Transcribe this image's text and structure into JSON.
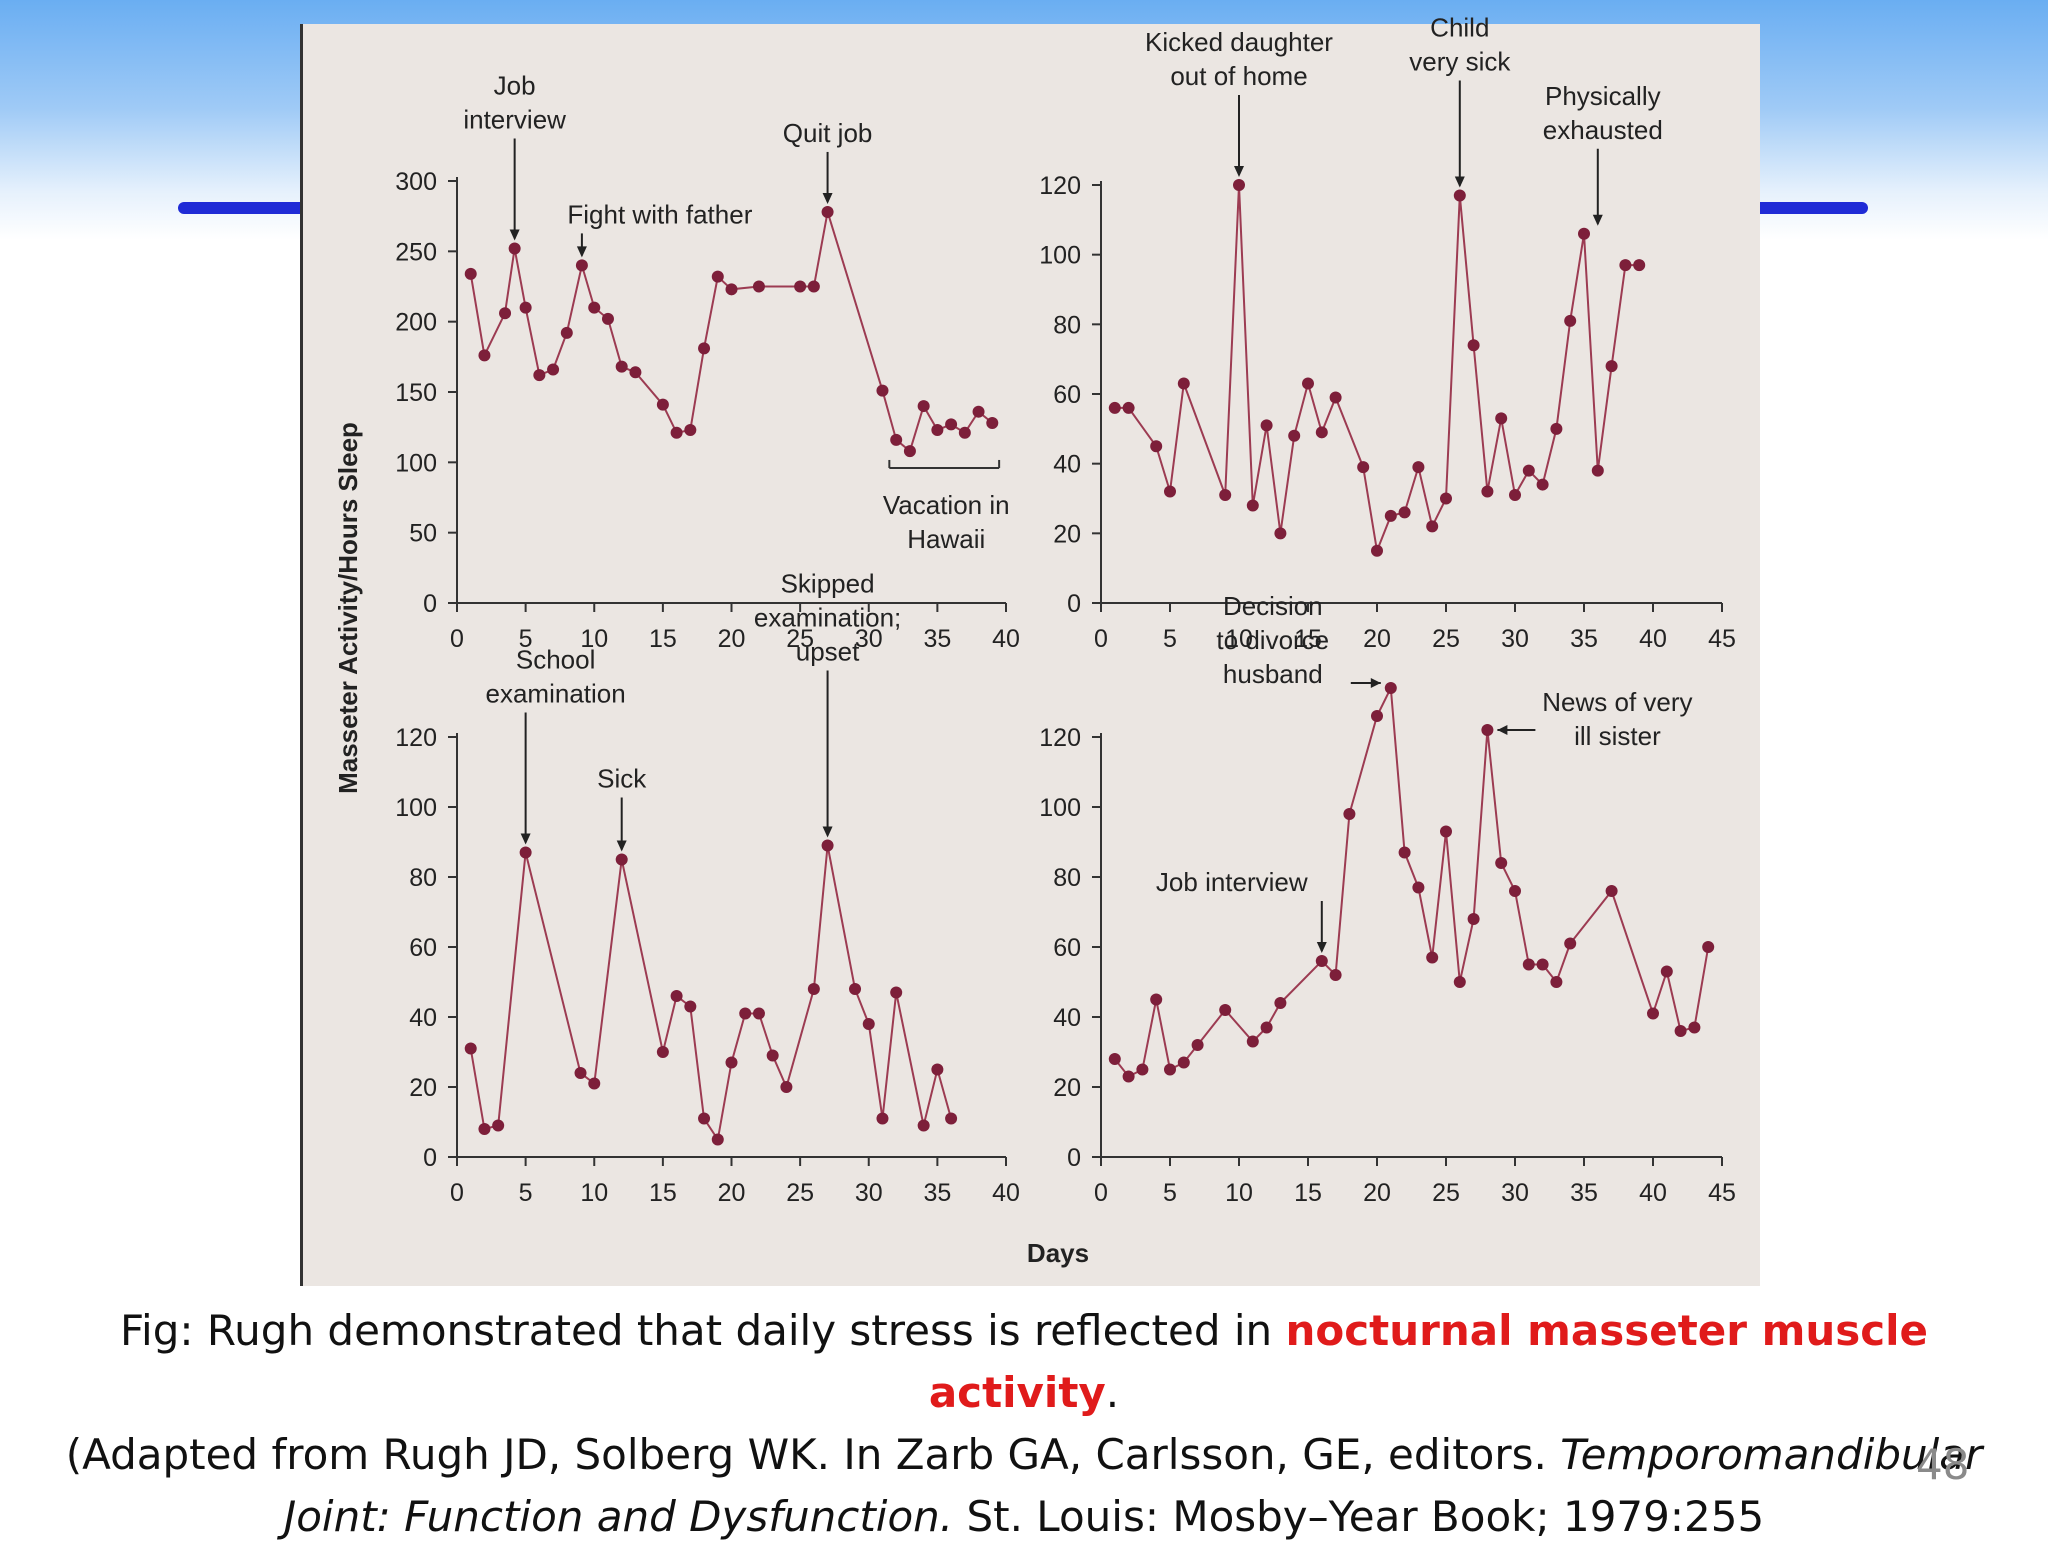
{
  "slide": {
    "caption": {
      "part1": "Fig: Rugh demonstrated that daily stress is reflected in ",
      "highlight": "nocturnal masseter muscle activity",
      "part2": ".",
      "line2": "(Adapted from Rugh JD, Solberg WK. In Zarb GA, Carlsson, GE, editors. ",
      "line2_italic": "Temporomandibular",
      "line3_italic": "Joint: Function and Dysfunction.",
      "line3": " St. Louis: Mosby–Year Book; 1979:255"
    },
    "page_number": "48",
    "colors": {
      "accent_bar": "#1f2bd6",
      "highlight_text": "#e01b1b",
      "series_line": "#9c3b52",
      "series_marker": "#7d1f3a",
      "figure_background": "#ebe6e2"
    }
  },
  "chart_data": [
    {
      "type": "line",
      "panel": "top-left",
      "ylabel": "Masseter Activity/Hours Sleep",
      "xlabel": "",
      "xlim": [
        0,
        40
      ],
      "ylim": [
        0,
        300
      ],
      "xticks": [
        "0",
        "5",
        "10",
        "15",
        "20",
        "25",
        "30",
        "35",
        "40"
      ],
      "yticks": [
        "0",
        "50",
        "100",
        "150",
        "200",
        "250",
        "300"
      ],
      "series": [
        {
          "x": [
            1,
            2,
            3.5,
            4.2,
            5,
            6,
            7,
            8,
            9.1,
            10,
            11,
            12,
            13,
            15,
            16,
            17,
            18,
            19,
            20,
            22,
            25,
            26,
            27,
            31,
            32,
            33,
            34,
            35,
            36,
            37,
            38,
            39
          ],
          "y": [
            234,
            176,
            206,
            252,
            210,
            162,
            166,
            192,
            240,
            210,
            202,
            168,
            164,
            141,
            121,
            123,
            181,
            232,
            223,
            225,
            225,
            225,
            278,
            151,
            116,
            108,
            140,
            123,
            127,
            121,
            136,
            128
          ]
        }
      ],
      "annotations": [
        {
          "text": [
            "Job",
            "interview"
          ],
          "x": 4.2,
          "y": 252
        },
        {
          "text": [
            "Fight with father"
          ],
          "x": 9.1,
          "y": 240
        },
        {
          "text": [
            "Quit job"
          ],
          "x": 27,
          "y": 278
        },
        {
          "text": [
            "Vacation in",
            "Hawaii"
          ],
          "range": [
            31.5,
            39.5
          ],
          "y": 96
        }
      ]
    },
    {
      "type": "line",
      "panel": "top-right",
      "xlabel": "",
      "xlim": [
        0,
        45
      ],
      "ylim": [
        0,
        120
      ],
      "xticks": [
        "0",
        "5",
        "10",
        "15",
        "20",
        "25",
        "30",
        "35",
        "40",
        "45"
      ],
      "yticks": [
        "0",
        "20",
        "40",
        "60",
        "80",
        "100",
        "120"
      ],
      "series": [
        {
          "x": [
            1,
            2,
            4,
            5,
            6,
            9,
            10,
            11,
            12,
            13,
            14,
            15,
            16,
            17,
            19,
            20,
            21,
            22,
            23,
            24,
            25,
            26,
            27,
            28,
            29,
            30,
            31,
            32,
            33,
            34,
            35,
            36,
            37,
            38,
            39
          ],
          "y": [
            56,
            56,
            45,
            32,
            63,
            31,
            120,
            28,
            51,
            20,
            48,
            63,
            49,
            59,
            39,
            15,
            25,
            26,
            39,
            22,
            30,
            117,
            74,
            32,
            53,
            31,
            38,
            34,
            50,
            81,
            106,
            38,
            68,
            97,
            97
          ]
        }
      ],
      "annotations": [
        {
          "text": [
            "Kicked daughter",
            "out of home"
          ],
          "x": 10,
          "y": 120
        },
        {
          "text": [
            "Child",
            "very sick"
          ],
          "x": 26,
          "y": 117
        },
        {
          "text": [
            "Physically",
            "exhausted"
          ],
          "x": 36,
          "y": 106
        }
      ]
    },
    {
      "type": "line",
      "panel": "bottom-left",
      "xlabel": "",
      "xlim": [
        0,
        40
      ],
      "ylim": [
        0,
        120
      ],
      "xticks": [
        "0",
        "5",
        "10",
        "15",
        "20",
        "25",
        "30",
        "35",
        "40"
      ],
      "yticks": [
        "0",
        "20",
        "40",
        "60",
        "80",
        "100",
        "120"
      ],
      "series": [
        {
          "x": [
            1,
            2,
            3,
            5,
            9,
            10,
            12,
            15,
            16,
            17,
            18,
            19,
            20,
            21,
            22,
            23,
            24,
            26,
            27,
            29,
            30,
            31,
            32,
            34,
            35,
            36
          ],
          "y": [
            31,
            8,
            9,
            87,
            24,
            21,
            85,
            30,
            46,
            43,
            11,
            5,
            27,
            41,
            41,
            29,
            20,
            48,
            89,
            48,
            38,
            11,
            47,
            9,
            25,
            11
          ]
        }
      ],
      "annotations": [
        {
          "text": [
            "School",
            "examination"
          ],
          "x": 5,
          "y": 87
        },
        {
          "text": [
            "Sick"
          ],
          "x": 12,
          "y": 85
        },
        {
          "text": [
            "Skipped",
            "examination;",
            "upset"
          ],
          "x": 27,
          "y": 89
        }
      ]
    },
    {
      "type": "line",
      "panel": "bottom-right",
      "xlabel": "Days",
      "xlim": [
        0,
        45
      ],
      "ylim": [
        0,
        120
      ],
      "xticks": [
        "0",
        "5",
        "10",
        "15",
        "20",
        "25",
        "30",
        "35",
        "40",
        "45"
      ],
      "yticks": [
        "0",
        "20",
        "40",
        "60",
        "80",
        "100",
        "120"
      ],
      "series": [
        {
          "x": [
            1,
            2,
            3,
            4,
            5,
            6,
            7,
            9,
            11,
            12,
            13,
            16,
            17,
            18,
            20,
            21,
            22,
            23,
            24,
            25,
            26,
            27,
            28,
            29,
            30,
            31,
            32,
            33,
            34,
            37,
            40,
            41,
            42,
            43,
            44
          ],
          "y": [
            28,
            23,
            25,
            45,
            25,
            27,
            32,
            42,
            33,
            37,
            44,
            56,
            52,
            98,
            126,
            134,
            87,
            77,
            57,
            93,
            50,
            68,
            122,
            84,
            76,
            55,
            55,
            50,
            61,
            76,
            41,
            53,
            36,
            37,
            60
          ]
        }
      ],
      "annotations": [
        {
          "text": [
            "Decision",
            "to divorce",
            "husband"
          ],
          "x": 21,
          "y": 134
        },
        {
          "text": [
            "News of very",
            "ill sister"
          ],
          "x": 28,
          "y": 122
        },
        {
          "text": [
            "Job interview"
          ],
          "x": 16,
          "y": 56
        }
      ]
    }
  ]
}
